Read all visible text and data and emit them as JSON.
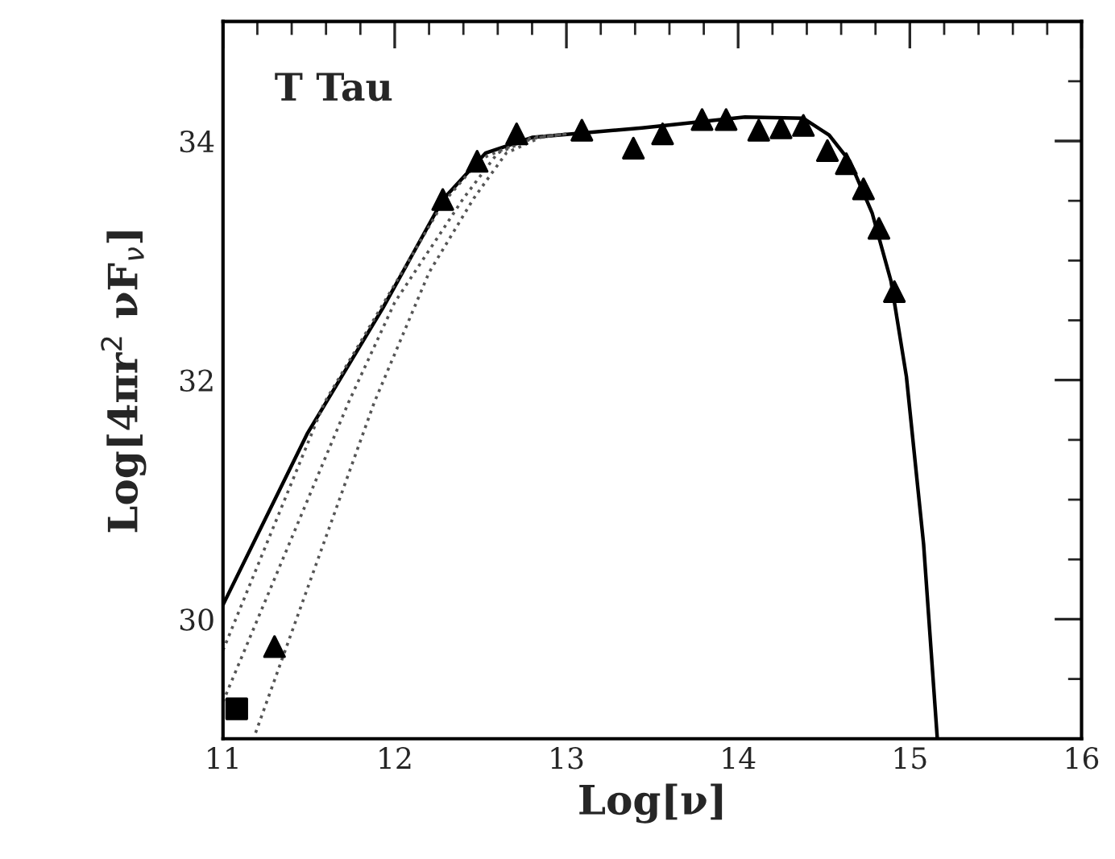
{
  "chart_data": {
    "type": "scatter",
    "xlabel": "Log[ν]",
    "ylabel": "Log[4πr$^{2}$ νF$_{ν}$]",
    "annotations": [
      "T Tau"
    ],
    "xlim": [
      11,
      16
    ],
    "ylim": [
      29,
      35
    ],
    "xticks": [
      11,
      12,
      13,
      14,
      15,
      16
    ],
    "yticks": [
      30,
      32,
      34
    ],
    "grid": false,
    "legend": false,
    "series": [
      {
        "type": "line",
        "line_style": "solid",
        "marker": "none",
        "color": "#000000",
        "x": [
          11.0,
          11.49,
          11.93,
          12.28,
          12.53,
          12.8,
          13.44,
          14.04,
          14.38,
          14.53,
          14.65,
          14.78,
          14.89,
          14.98,
          15.08,
          15.16
        ],
        "values": [
          30.12,
          31.55,
          32.6,
          33.51,
          33.9,
          34.03,
          34.11,
          34.2,
          34.19,
          34.05,
          33.83,
          33.4,
          32.83,
          32.03,
          30.63,
          29.0
        ]
      },
      {
        "type": "line",
        "line_style": "dotted",
        "marker": "none",
        "color": "#555555",
        "x": [
          11.0,
          11.59,
          12.0,
          12.28,
          12.5,
          12.8,
          13.0
        ],
        "values": [
          29.74,
          31.81,
          32.8,
          33.48,
          33.85,
          34.03,
          34.06
        ]
      },
      {
        "type": "line",
        "line_style": "dotted",
        "marker": "none",
        "color": "#555555",
        "x": [
          11.0,
          11.73,
          12.0,
          12.4,
          12.6,
          12.8,
          13.0
        ],
        "values": [
          29.31,
          31.81,
          32.65,
          33.52,
          33.9,
          34.02,
          34.06
        ]
      },
      {
        "type": "line",
        "line_style": "dotted",
        "marker": "none",
        "color": "#555555",
        "x": [
          11.19,
          11.88,
          12.2,
          12.46,
          12.65,
          12.85,
          13.0
        ],
        "values": [
          29.05,
          31.81,
          32.9,
          33.52,
          33.9,
          34.03,
          34.06
        ]
      },
      {
        "marker": "triangle",
        "color": "#000000",
        "x": [
          12.28,
          12.48,
          12.71,
          13.09,
          13.39,
          13.56,
          13.79,
          13.93,
          14.12,
          14.25,
          14.38,
          14.52,
          14.63,
          14.73,
          14.82,
          14.91
        ],
        "values": [
          33.51,
          33.83,
          34.06,
          34.09,
          33.94,
          34.06,
          34.18,
          34.18,
          34.09,
          34.11,
          34.13,
          33.92,
          33.81,
          33.6,
          33.27,
          32.74
        ]
      },
      {
        "marker": "triangle",
        "color": "#000000",
        "x": [
          11.3
        ],
        "values": [
          29.77
        ]
      },
      {
        "marker": "square",
        "color": "#000000",
        "x": [
          11.08
        ],
        "values": [
          29.25
        ]
      }
    ]
  }
}
